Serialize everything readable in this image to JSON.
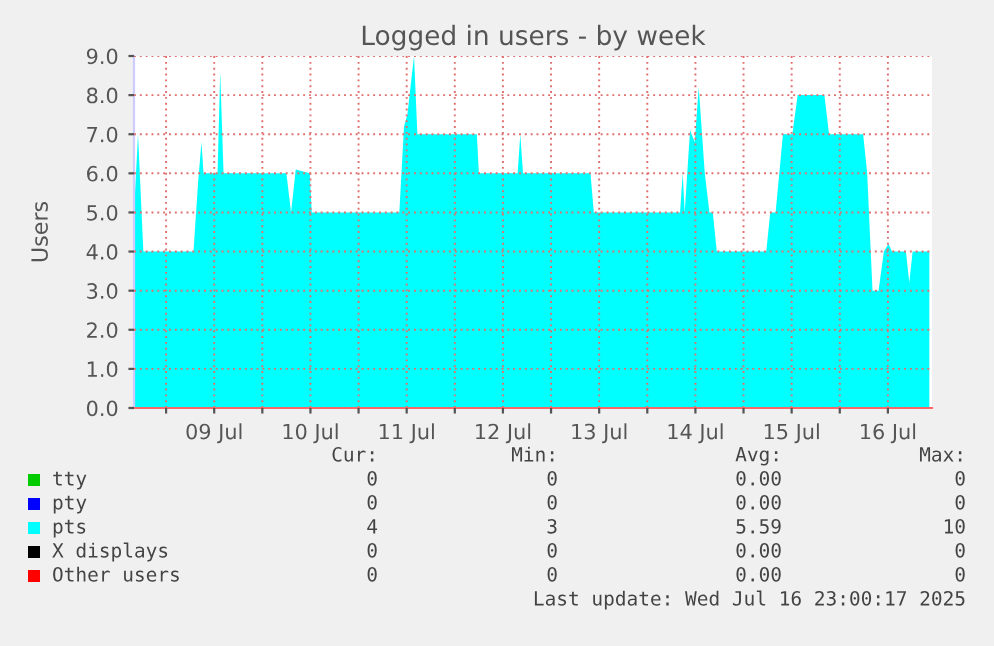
{
  "chart_data": {
    "type": "area",
    "title": "Logged in users - by week",
    "ylabel": "Users",
    "xlim": [
      "2025-07-08T16:00",
      "2025-07-16T23:00"
    ],
    "xticks": [
      {
        "value": "2025-07-09T00:00",
        "label": null
      },
      {
        "value": "2025-07-09T12:00",
        "label": "09 Jul"
      },
      {
        "value": "2025-07-10T00:00",
        "label": null
      },
      {
        "value": "2025-07-10T12:00",
        "label": "10 Jul"
      },
      {
        "value": "2025-07-11T00:00",
        "label": null
      },
      {
        "value": "2025-07-11T12:00",
        "label": "11 Jul"
      },
      {
        "value": "2025-07-12T00:00",
        "label": null
      },
      {
        "value": "2025-07-12T12:00",
        "label": "12 Jul"
      },
      {
        "value": "2025-07-13T00:00",
        "label": null
      },
      {
        "value": "2025-07-13T12:00",
        "label": "13 Jul"
      },
      {
        "value": "2025-07-14T00:00",
        "label": null
      },
      {
        "value": "2025-07-14T12:00",
        "label": "14 Jul"
      },
      {
        "value": "2025-07-15T00:00",
        "label": null
      },
      {
        "value": "2025-07-15T12:00",
        "label": "15 Jul"
      },
      {
        "value": "2025-07-16T00:00",
        "label": null
      },
      {
        "value": "2025-07-16T12:00",
        "label": "16 Jul"
      }
    ],
    "ylim": [
      0,
      9
    ],
    "yticks": [
      {
        "value": 0,
        "label": "0.0"
      },
      {
        "value": 1,
        "label": "1.0"
      },
      {
        "value": 2,
        "label": "2.0"
      },
      {
        "value": 3,
        "label": "3.0"
      },
      {
        "value": 4,
        "label": "4.0"
      },
      {
        "value": 5,
        "label": "5.0"
      },
      {
        "value": 6,
        "label": "6.0"
      },
      {
        "value": 7,
        "label": "7.0"
      },
      {
        "value": 8,
        "label": "8.0"
      },
      {
        "value": 9,
        "label": "9.0"
      }
    ],
    "grid": true,
    "legend": "bottom",
    "series": [
      {
        "name": "tty",
        "color": "#00cc00"
      },
      {
        "name": "pty",
        "color": "#0000ff"
      },
      {
        "name": "pts",
        "color": "#00ffff",
        "x": [
          "2025-07-08T16:00",
          "2025-07-08T17:00",
          "2025-07-08T18:20",
          "2025-07-09T06:50",
          "2025-07-09T08:00",
          "2025-07-09T08:50",
          "2025-07-09T09:20",
          "2025-07-09T12:50",
          "2025-07-09T13:30",
          "2025-07-09T14:20",
          "2025-07-10T06:00",
          "2025-07-10T07:10",
          "2025-07-10T08:20",
          "2025-07-10T11:50",
          "2025-07-10T12:20",
          "2025-07-11T10:10",
          "2025-07-11T11:20",
          "2025-07-11T12:10",
          "2025-07-11T13:50",
          "2025-07-11T14:40",
          "2025-07-12T05:30",
          "2025-07-12T06:00",
          "2025-07-12T15:40",
          "2025-07-12T16:20",
          "2025-07-12T17:00",
          "2025-07-13T09:50",
          "2025-07-13T10:40",
          "2025-07-14T08:10",
          "2025-07-14T08:50",
          "2025-07-14T09:20",
          "2025-07-14T10:40",
          "2025-07-14T11:50",
          "2025-07-14T12:50",
          "2025-07-14T14:20",
          "2025-07-14T15:30",
          "2025-07-14T16:20",
          "2025-07-14T17:20",
          "2025-07-15T05:40",
          "2025-07-15T06:40",
          "2025-07-15T08:00",
          "2025-07-15T09:50",
          "2025-07-15T12:10",
          "2025-07-15T13:30",
          "2025-07-15T20:10",
          "2025-07-15T21:20",
          "2025-07-16T05:50",
          "2025-07-16T06:50",
          "2025-07-16T08:10",
          "2025-07-16T09:40",
          "2025-07-16T11:00",
          "2025-07-16T12:10",
          "2025-07-16T13:00",
          "2025-07-16T16:30",
          "2025-07-16T17:20",
          "2025-07-16T18:10",
          "2025-07-16T22:20"
        ],
        "values": [
          5,
          7,
          4,
          4,
          5.8,
          6.8,
          6,
          6,
          8.6,
          6,
          6,
          5,
          6.1,
          6,
          5,
          5,
          7.2,
          7.5,
          9.0,
          7,
          7,
          6,
          6,
          7,
          6,
          6,
          5,
          5,
          6,
          5,
          7.1,
          6.8,
          8.2,
          6,
          5,
          5,
          4,
          4,
          5,
          5,
          7,
          7,
          8,
          8,
          7,
          7,
          6,
          3,
          3,
          4,
          4.2,
          4,
          4,
          3.2,
          4,
          4
        ]
      },
      {
        "name": "X displays",
        "color": "#000000"
      },
      {
        "name": "Other users",
        "color": "#ff0000"
      }
    ],
    "annotations": [
      "Cur:",
      "Min:",
      "Avg:",
      "Max:",
      "0",
      "0",
      "0.00",
      "0",
      "0",
      "0",
      "0.00",
      "0",
      "4",
      "3",
      "5.59",
      "10",
      "0",
      "0",
      "0.00",
      "0",
      "0",
      "0",
      "0.00",
      "0",
      "Last update: Wed Jul 16 23:00:17 2025"
    ]
  }
}
